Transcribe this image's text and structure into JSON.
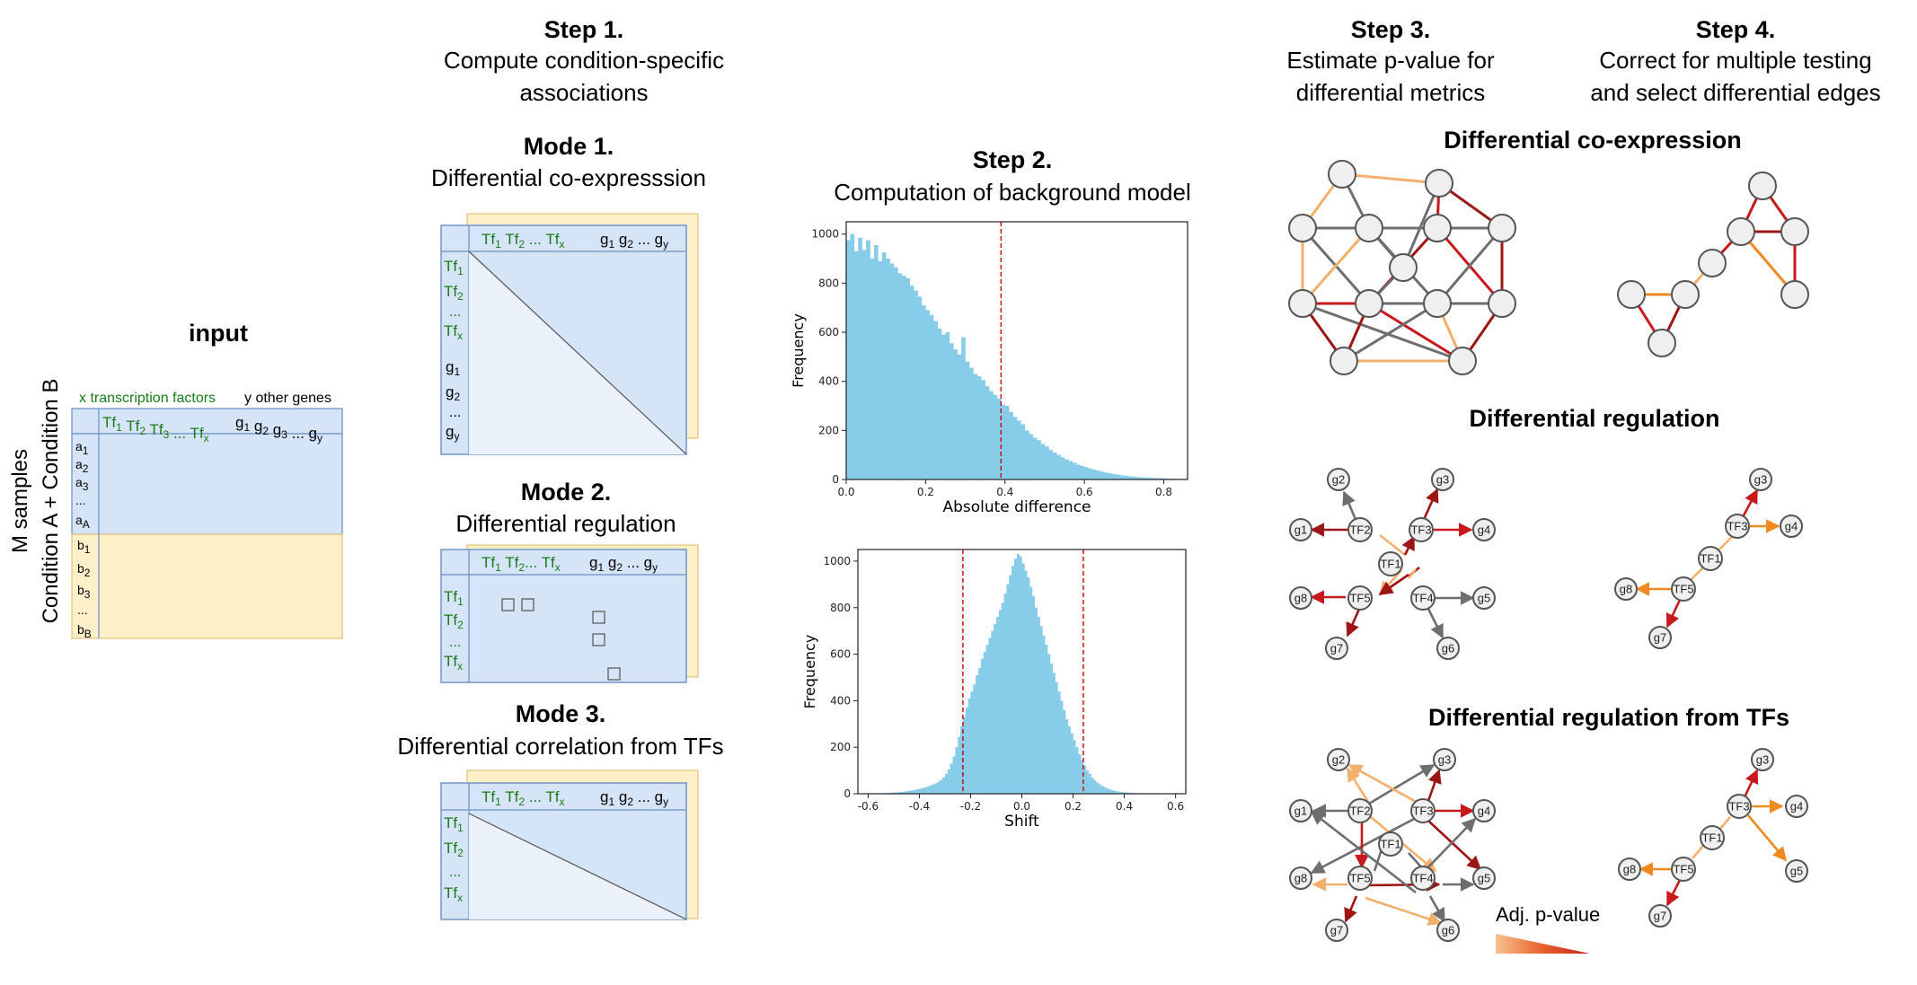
{
  "input": {
    "title": "input",
    "ylabel_line1": "M samples",
    "ylabel_line2": "Condition A + Condition B",
    "tf_header": "x transcription factors",
    "gene_header": "y other genes",
    "cols": "Tf1 Tf2 Tf3 ... Tfx",
    "gcols": "g1 g2 g3 ... gy",
    "rows_a": [
      "a1",
      "a2",
      "a3",
      "...",
      "aA"
    ],
    "rows_b": [
      "b1",
      "b2",
      "b3",
      "...",
      "bB"
    ]
  },
  "step1": {
    "head": "Step 1.",
    "line1": "Compute condition-specific",
    "line2": "associations"
  },
  "mode1": {
    "head": "Mode 1.",
    "sub": "Differential co-expresssion"
  },
  "mode2": {
    "head": "Mode 2.",
    "sub": "Differential regulation"
  },
  "mode3": {
    "head": "Mode 3.",
    "sub": "Differential correlation from TFs"
  },
  "step2": {
    "head": "Step 2.",
    "sub": "Computation of background model"
  },
  "step3": {
    "head": "Step 3.",
    "line1": "Estimate p-value for",
    "line2": "differential metrics"
  },
  "step4": {
    "head": "Step 4.",
    "line1": "Correct for multiple testing",
    "line2": "and select differential edges"
  },
  "sections": {
    "coexpr": "Differential co-expression",
    "regulation": "Differential regulation",
    "regtf": "Differential regulation from TFs"
  },
  "legend": {
    "label": "Adj. p-value",
    "colors": [
      "#f7c38f",
      "#e8602a",
      "#c62020"
    ]
  },
  "colors": {
    "light_orange": "#f4b06b",
    "orange": "#ee8a1f",
    "dark_red": "#9e1515",
    "red": "#c9181c",
    "gray": "#6e6e6e",
    "blue_panel": "#d6e4f7",
    "yellow_panel": "#fdefc7",
    "hist": "#87cdea",
    "threshold": "#cc0000"
  },
  "chart_data": [
    {
      "type": "bar",
      "xlabel": "Absolute difference",
      "ylabel": "Frequency",
      "xlim": [
        0.0,
        0.86
      ],
      "ylim": [
        0,
        1050
      ],
      "xticks": [
        "0.0",
        "0.2",
        "0.4",
        "0.6",
        "0.8"
      ],
      "yticks": [
        "0",
        "200",
        "400",
        "600",
        "800",
        "1000"
      ],
      "threshold": [
        0.39
      ],
      "bin_width": 0.01,
      "x_start": 0.0,
      "values": [
        975,
        1000,
        930,
        985,
        935,
        975,
        900,
        955,
        890,
        925,
        900,
        880,
        865,
        840,
        830,
        820,
        790,
        770,
        745,
        710,
        690,
        670,
        645,
        615,
        590,
        600,
        555,
        530,
        510,
        580,
        480,
        455,
        430,
        420,
        405,
        380,
        360,
        345,
        330,
        305,
        300,
        275,
        255,
        240,
        225,
        200,
        185,
        170,
        160,
        145,
        135,
        120,
        110,
        100,
        90,
        82,
        75,
        68,
        60,
        55,
        50,
        45,
        40,
        36,
        32,
        28,
        25,
        22,
        20,
        17,
        15,
        13,
        12,
        10,
        9,
        8,
        7,
        6,
        5,
        5,
        4,
        3,
        3,
        2,
        2,
        2
      ]
    },
    {
      "type": "bar",
      "xlabel": "Shift",
      "ylabel": "Frequency",
      "xlim": [
        -0.64,
        0.64
      ],
      "ylim": [
        0,
        1050
      ],
      "xticks": [
        "-0.6",
        "-0.4",
        "-0.2",
        "0.0",
        "0.2",
        "0.4",
        "0.6"
      ],
      "yticks": [
        "0",
        "200",
        "400",
        "600",
        "800",
        "1000"
      ],
      "threshold": [
        -0.23,
        0.24
      ],
      "bin_width": 0.01,
      "x_start": -0.6,
      "values": [
        1,
        1,
        1,
        2,
        2,
        2,
        3,
        3,
        4,
        5,
        5,
        6,
        7,
        8,
        10,
        11,
        13,
        15,
        17,
        20,
        22,
        25,
        28,
        32,
        36,
        40,
        45,
        52,
        60,
        70,
        85,
        105,
        130,
        160,
        200,
        245,
        290,
        330,
        370,
        410,
        440,
        470,
        510,
        540,
        580,
        610,
        640,
        670,
        700,
        730,
        760,
        790,
        820,
        860,
        900,
        940,
        980,
        1010,
        1030,
        1020,
        990,
        960,
        930,
        890,
        850,
        800,
        760,
        720,
        680,
        640,
        600,
        560,
        520,
        480,
        440,
        400,
        360,
        320,
        290,
        260,
        230,
        200,
        170,
        145,
        120,
        100,
        85,
        70,
        58,
        48,
        40,
        33,
        27,
        22,
        18,
        15,
        12,
        10,
        8,
        7,
        6,
        5,
        4,
        3,
        3,
        2,
        2,
        2,
        1,
        1,
        1,
        1,
        1,
        1,
        1,
        1,
        1,
        1,
        1,
        1
      ]
    }
  ]
}
